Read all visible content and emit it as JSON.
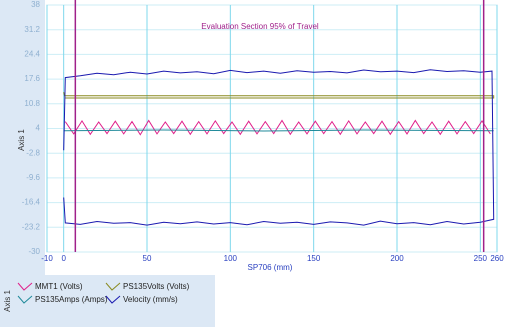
{
  "chart_data": {
    "type": "line",
    "title": "Evaluation Section 95% of Travel",
    "xlabel": "SP706 (mm)",
    "ylabel": "Axis 1",
    "xlim": [
      -10,
      260
    ],
    "xticks": [
      -10,
      0,
      50,
      100,
      150,
      200,
      250,
      260
    ],
    "ylim": [
      -30,
      38
    ],
    "yticks": [
      38,
      31.2,
      24.4,
      17.6,
      10.8,
      4,
      -2.8,
      -9.6,
      -16.4,
      -23.2,
      -30
    ],
    "grid": true,
    "vlines": [
      7,
      252
    ],
    "vline_color": "#a0208a",
    "series": [
      {
        "name": "MMT1 (Volts)",
        "color": "#e0208a",
        "x": [
          1,
          6,
          11,
          16,
          21,
          26,
          31,
          36,
          41,
          46,
          51,
          56,
          61,
          66,
          71,
          76,
          81,
          86,
          91,
          96,
          101,
          106,
          111,
          116,
          121,
          126,
          131,
          136,
          141,
          146,
          151,
          156,
          161,
          166,
          171,
          176,
          181,
          186,
          191,
          196,
          201,
          206,
          211,
          216,
          221,
          226,
          231,
          236,
          241,
          246,
          251,
          256
        ],
        "values": [
          5.9,
          2.5,
          6.1,
          2.4,
          5.8,
          2.6,
          6.0,
          2.5,
          5.9,
          2.3,
          6.2,
          2.5,
          5.8,
          2.6,
          6.0,
          2.4,
          5.9,
          2.5,
          6.1,
          2.6,
          5.8,
          2.4,
          6.0,
          2.5,
          5.9,
          2.6,
          6.2,
          2.4,
          5.8,
          2.5,
          6.0,
          2.6,
          5.9,
          2.4,
          6.1,
          2.5,
          5.8,
          2.6,
          6.0,
          2.4,
          5.9,
          2.5,
          6.2,
          2.6,
          5.8,
          2.4,
          6.0,
          2.5,
          5.9,
          2.6,
          6.1,
          2.5
        ]
      },
      {
        "name": "PS135Volts (Volts)",
        "color": "#8a8a20",
        "x": [
          0,
          0.5,
          258,
          258,
          0.5
        ],
        "values": [
          14,
          13,
          13,
          12.4,
          12.4
        ]
      },
      {
        "name": "PS135Amps (Amps)",
        "color": "#208a9a",
        "x": [
          0,
          60,
          120,
          180,
          258
        ],
        "values": [
          3.4,
          3.6,
          3.3,
          3.6,
          3.4
        ]
      },
      {
        "name": "Velocity (mm/s)",
        "color": "#1a1ab0",
        "x": [
          0,
          1,
          10,
          20,
          30,
          40,
          50,
          60,
          70,
          80,
          90,
          100,
          110,
          120,
          130,
          140,
          150,
          160,
          170,
          180,
          190,
          200,
          210,
          220,
          230,
          240,
          250,
          257,
          258,
          250,
          240,
          230,
          220,
          210,
          200,
          190,
          180,
          170,
          160,
          150,
          140,
          130,
          120,
          110,
          100,
          90,
          80,
          70,
          60,
          50,
          40,
          30,
          20,
          10,
          1,
          0
        ],
        "values": [
          -2,
          18,
          18.5,
          19.2,
          18.8,
          19.5,
          19.0,
          19.8,
          19.3,
          19.6,
          19.1,
          20.0,
          19.4,
          19.8,
          19.2,
          19.9,
          19.5,
          19.7,
          19.3,
          20.1,
          19.6,
          19.8,
          19.4,
          20.2,
          19.7,
          19.9,
          19.5,
          19.8,
          -21,
          -21.8,
          -22.3,
          -21.6,
          -22.5,
          -21.9,
          -22.2,
          -21.5,
          -22.6,
          -22.0,
          -21.7,
          -22.4,
          -21.8,
          -22.1,
          -21.6,
          -22.5,
          -21.9,
          -22.3,
          -21.7,
          -22.2,
          -21.8,
          -22.6,
          -21.9,
          -22.1,
          -21.6,
          -22.4,
          -22,
          -15
        ]
      }
    ]
  }
}
